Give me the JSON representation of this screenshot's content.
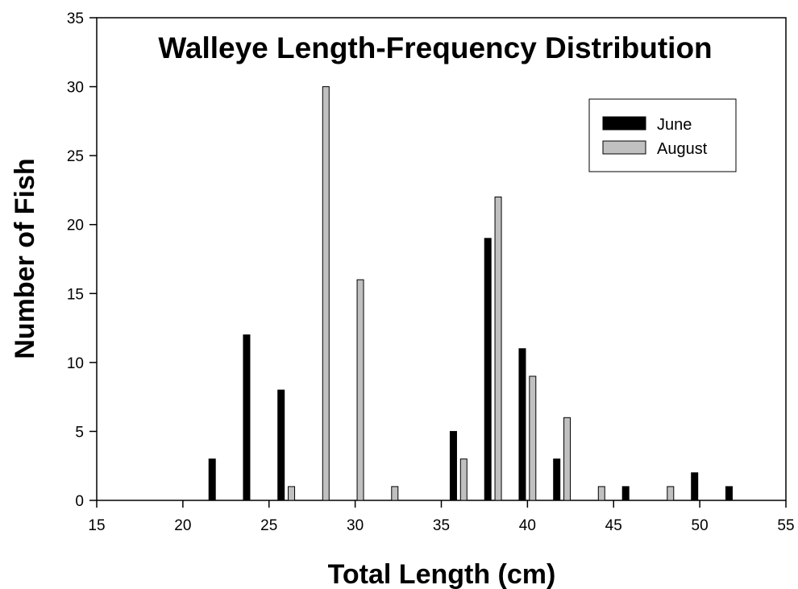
{
  "chart_data": {
    "type": "bar",
    "title": "Walleye Length-Frequency Distribution",
    "xlabel": "Total Length (cm)",
    "ylabel": "Number of Fish",
    "xlim": [
      15,
      55
    ],
    "ylim": [
      0,
      35
    ],
    "x_ticks": [
      15,
      20,
      25,
      30,
      35,
      40,
      45,
      50,
      55
    ],
    "y_ticks": [
      0,
      5,
      10,
      15,
      20,
      25,
      30,
      35
    ],
    "grid": false,
    "legend_position": "top-right",
    "series": [
      {
        "name": "June",
        "color": "#000000",
        "x": [
          21.7,
          23.7,
          25.7,
          35.7,
          37.7,
          39.7,
          41.7,
          45.7,
          49.7,
          51.7
        ],
        "values": [
          3,
          12,
          8,
          5,
          19,
          11,
          3,
          1,
          2,
          1
        ]
      },
      {
        "name": "August",
        "color": "#c0c0c0",
        "x": [
          26.3,
          28.3,
          30.3,
          32.3,
          36.3,
          38.3,
          40.3,
          42.3,
          44.3,
          48.3
        ],
        "values": [
          1,
          30,
          16,
          1,
          3,
          22,
          9,
          6,
          1,
          1
        ]
      }
    ]
  }
}
